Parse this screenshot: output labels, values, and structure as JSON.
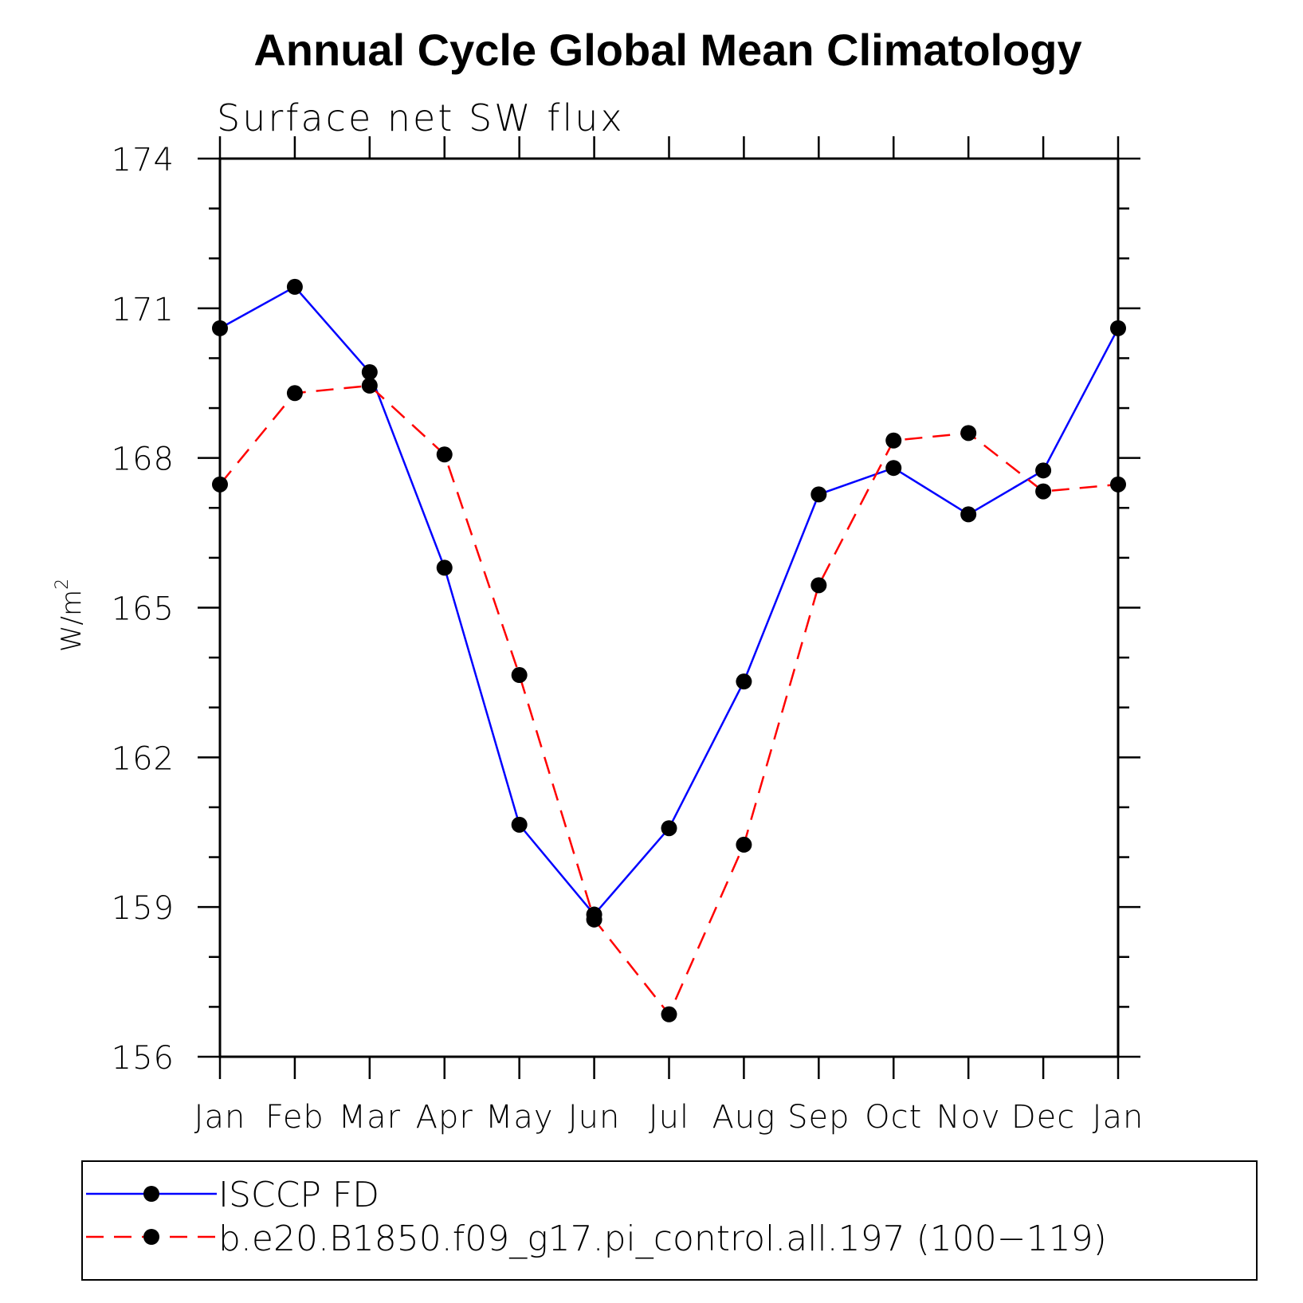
{
  "chart_data": {
    "type": "line",
    "title": "Annual Cycle Global Mean Climatology",
    "subtitle": "Surface net SW flux",
    "xlabel": "",
    "ylabel": "W/m",
    "ylabel_superscript": "2",
    "categories": [
      "Jan",
      "Feb",
      "Mar",
      "Apr",
      "May",
      "Jun",
      "Jul",
      "Aug",
      "Sep",
      "Oct",
      "Nov",
      "Dec",
      "Jan"
    ],
    "ylim": [
      156,
      174
    ],
    "yticks": [
      "174",
      "171",
      "168",
      "165",
      "162",
      "159",
      "156"
    ],
    "grid": false,
    "legend_placement": "bottom",
    "series": [
      {
        "name": "ISCCP FD",
        "color": "#0000ff",
        "style": "solid",
        "values": [
          170.6,
          171.43,
          169.72,
          165.8,
          160.65,
          158.85,
          160.58,
          163.52,
          167.27,
          167.8,
          166.87,
          167.75,
          170.6
        ]
      },
      {
        "name": "b.e20.B1850.f09_g17.pi_control.all.197 (100−119)",
        "color": "#ff0000",
        "style": "dashed",
        "values": [
          167.47,
          169.3,
          169.45,
          168.07,
          163.65,
          158.75,
          156.85,
          160.25,
          165.45,
          168.35,
          168.5,
          167.33,
          167.47
        ]
      }
    ]
  }
}
